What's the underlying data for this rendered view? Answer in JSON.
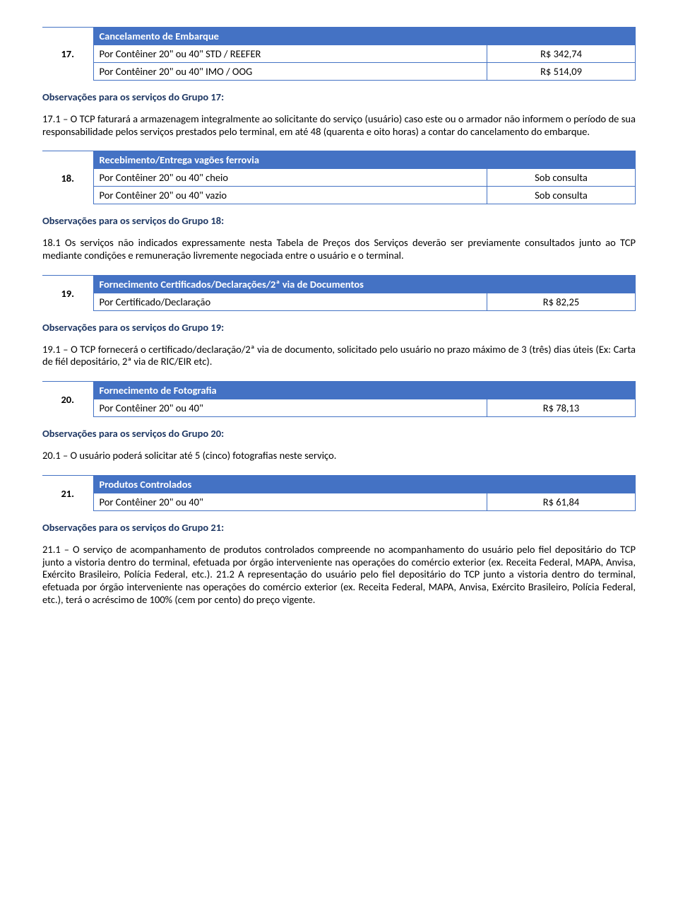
{
  "g17": {
    "num": "17.",
    "title": "Cancelamento de Embarque",
    "rows": [
      {
        "desc": "Por Contêiner 20\" ou 40\" STD / REEFER",
        "val": "R$ 342,74"
      },
      {
        "desc": "Por Contêiner 20\" ou 40\" IMO / OOG",
        "val": "R$ 514,09"
      }
    ],
    "obs_title": "Observações para os serviços do Grupo 17:",
    "obs_text": "17.1 – O TCP faturará a armazenagem integralmente ao solicitante do serviço (usuário) caso este ou o armador não informem o período de sua responsabilidade pelos serviços prestados pelo terminal, em até 48 (quarenta e oito horas) a contar do cancelamento do embarque."
  },
  "g18": {
    "num": "18.",
    "title": "Recebimento/Entrega vagões ferrovia",
    "rows": [
      {
        "desc": "Por Contêiner 20\" ou 40\" cheio",
        "val": "Sob consulta"
      },
      {
        "desc": "Por Contêiner 20\" ou 40\" vazio",
        "val": "Sob consulta"
      }
    ],
    "obs_title": "Observações para os serviços do Grupo 18:",
    "obs_text": "18.1 Os serviços não indicados expressamente nesta Tabela de Preços dos Serviços deverão ser previamente consultados junto ao TCP mediante condições e remuneração livremente negociada entre o usuário e o terminal."
  },
  "g19": {
    "num": "19.",
    "title": "Fornecimento Certificados/Declarações/2ª via de Documentos",
    "rows": [
      {
        "desc": "Por Certificado/Declaração",
        "val": "R$ 82,25"
      }
    ],
    "obs_title": "Observações para os serviços do Grupo 19:",
    "obs_text": "19.1 – O TCP fornecerá o certificado/declaração/2ª via de documento, solicitado pelo usuário no prazo máximo de 3 (três) dias úteis (Ex: Carta de fiél depositário, 2ª via de RIC/EIR etc)."
  },
  "g20": {
    "num": "20.",
    "title": "Fornecimento de Fotografia",
    "rows": [
      {
        "desc": "Por Contêiner 20\" ou 40\"",
        "val": "R$ 78,13"
      }
    ],
    "obs_title": "Observações para os serviços do Grupo 20:",
    "obs_text": "20.1 – O usuário poderá solicitar até 5 (cinco) fotografias neste serviço."
  },
  "g21": {
    "num": "21.",
    "title": "Produtos Controlados",
    "rows": [
      {
        "desc": "Por Contêiner 20\" ou 40\"",
        "val": "R$ 61,84"
      }
    ],
    "obs_title": "Observações para os serviços do Grupo 21:",
    "obs_text": "21.1 – O serviço de acompanhamento de produtos controlados compreende no acompanhamento do usuário pelo fiel depositário do TCP junto a vistoria dentro do terminal, efetuada por órgão interveniente nas operações do comércio exterior (ex. Receita Federal, MAPA, Anvisa, Exército Brasileiro, Polícia Federal, etc.). 21.2 A representação do usuário pelo fiel depositário do TCP junto a vistoria dentro do terminal, efetuada por órgão interveniente nas operações do comércio exterior (ex. Receita Federal, MAPA, Anvisa, Exército Brasileiro, Polícia Federal, etc.), terá o acréscimo de 100% (cem por cento) do preço vigente."
  }
}
